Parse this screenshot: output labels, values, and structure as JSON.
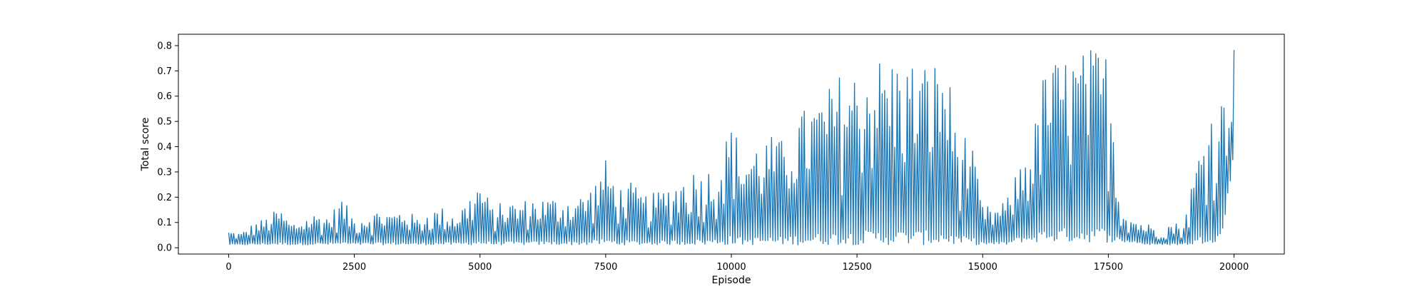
{
  "chart_data": {
    "type": "line",
    "title": "",
    "xlabel": "Episode",
    "ylabel": "Total score",
    "xlim": [
      -1000,
      21000
    ],
    "ylim": [
      -0.025,
      0.845
    ],
    "x_ticks": [
      0,
      2500,
      5000,
      7500,
      10000,
      12500,
      15000,
      17500,
      20000
    ],
    "x_tick_labels": [
      "0",
      "2500",
      "5000",
      "7500",
      "10000",
      "12500",
      "15000",
      "17500",
      "20000"
    ],
    "y_ticks": [
      0.0,
      0.1,
      0.2,
      0.3,
      0.4,
      0.5,
      0.6,
      0.7,
      0.8
    ],
    "y_tick_labels": [
      "0.0",
      "0.1",
      "0.2",
      "0.3",
      "0.4",
      "0.5",
      "0.6",
      "0.7",
      "0.8"
    ],
    "grid": false,
    "legend": "none",
    "line_color": "#1f77b4",
    "series": [
      {
        "x": [
          0,
          250,
          500,
          750,
          1000,
          1250,
          1500,
          1750,
          2000,
          2250,
          2500,
          2750,
          3000,
          3250,
          3500,
          3750,
          4000,
          4250,
          4500,
          4750,
          5000,
          5250,
          5500,
          5750,
          6000,
          6250,
          6500,
          6750,
          7000,
          7250,
          7500,
          7750,
          8000,
          8250,
          8500,
          8750,
          9000,
          9250,
          9500,
          9750,
          10000,
          10250,
          10500,
          10750,
          11000,
          11250,
          11500,
          11750,
          12000,
          12250,
          12500,
          12750,
          13000,
          13250,
          13500,
          13750,
          14000,
          14250,
          14500,
          14750,
          15000,
          15250,
          15500,
          15750,
          16000,
          16250,
          16500,
          16750,
          17000,
          17250,
          17500,
          17750,
          18000,
          18250,
          18500,
          18750,
          19000,
          19250,
          19500,
          19750,
          20000
        ],
        "min": [
          0.01,
          0.01,
          0.01,
          0.01,
          0.01,
          0.01,
          0.01,
          0.01,
          0.01,
          0.01,
          0.01,
          0.01,
          0.01,
          0.01,
          0.01,
          0.01,
          0.01,
          0.01,
          0.01,
          0.01,
          0.01,
          0.01,
          0.01,
          0.01,
          0.01,
          0.01,
          0.01,
          0.01,
          0.01,
          0.01,
          0.01,
          0.01,
          0.01,
          0.01,
          0.01,
          0.01,
          0.01,
          0.01,
          0.01,
          0.01,
          0.01,
          0.01,
          0.01,
          0.01,
          0.01,
          0.01,
          0.01,
          0.01,
          0.01,
          0.01,
          0.01,
          0.01,
          0.01,
          0.01,
          0.01,
          0.01,
          0.01,
          0.01,
          0.01,
          0.01,
          0.01,
          0.01,
          0.01,
          0.02,
          0.02,
          0.02,
          0.02,
          0.02,
          0.02,
          0.02,
          0.02,
          0.02,
          0.02,
          0.01,
          0.01,
          0.01,
          0.01,
          0.01,
          0.02,
          0.02,
          0.35
        ],
        "max": [
          0.07,
          0.06,
          0.1,
          0.12,
          0.16,
          0.1,
          0.12,
          0.14,
          0.13,
          0.2,
          0.12,
          0.14,
          0.15,
          0.14,
          0.16,
          0.12,
          0.15,
          0.16,
          0.14,
          0.19,
          0.27,
          0.16,
          0.19,
          0.18,
          0.2,
          0.2,
          0.2,
          0.2,
          0.21,
          0.25,
          0.35,
          0.24,
          0.26,
          0.21,
          0.22,
          0.25,
          0.28,
          0.31,
          0.31,
          0.35,
          0.5,
          0.38,
          0.42,
          0.45,
          0.43,
          0.52,
          0.56,
          0.6,
          0.65,
          0.72,
          0.7,
          0.76,
          0.76,
          0.76,
          0.75,
          0.74,
          0.74,
          0.77,
          0.48,
          0.44,
          0.17,
          0.16,
          0.2,
          0.35,
          0.45,
          0.74,
          0.75,
          0.77,
          0.78,
          0.8,
          0.78,
          0.17,
          0.12,
          0.1,
          0.08,
          0.1,
          0.1,
          0.35,
          0.55,
          0.6,
          0.8
        ]
      }
    ]
  }
}
